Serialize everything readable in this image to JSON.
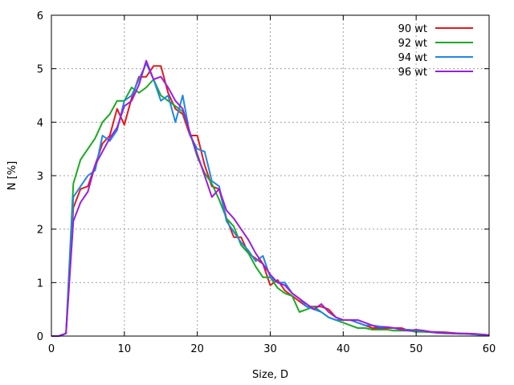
{
  "chart_data": {
    "type": "line",
    "title": "",
    "xlabel": "Size, D",
    "ylabel": "N [%]",
    "xlim": [
      0,
      60
    ],
    "ylim": [
      0,
      6
    ],
    "xticks": [
      0,
      10,
      20,
      30,
      40,
      50,
      60
    ],
    "yticks": [
      0,
      1,
      2,
      3,
      4,
      5,
      6
    ],
    "grid": true,
    "legend_position": "top-right",
    "series": [
      {
        "name": "90 wt",
        "color": "#e31a1c",
        "x": [
          0,
          1,
          2,
          3,
          4,
          5,
          6,
          7,
          8,
          9,
          10,
          11,
          12,
          13,
          14,
          15,
          16,
          17,
          18,
          19,
          20,
          21,
          22,
          23,
          24,
          25,
          26,
          27,
          28,
          29,
          30,
          31,
          32,
          33,
          34,
          35,
          36,
          37,
          38,
          39,
          40,
          41,
          42,
          43,
          44,
          45,
          46,
          47,
          48,
          49,
          50,
          51,
          52,
          53,
          54,
          55,
          56,
          57,
          58,
          59,
          60
        ],
        "y": [
          0,
          0,
          0.05,
          2.4,
          2.75,
          2.8,
          3.2,
          3.6,
          3.75,
          4.25,
          3.95,
          4.45,
          4.85,
          4.85,
          5.05,
          5.05,
          4.55,
          4.25,
          4.15,
          3.75,
          3.75,
          3.2,
          2.8,
          2.75,
          2.2,
          1.85,
          1.85,
          1.55,
          1.45,
          1.35,
          0.95,
          1.05,
          0.85,
          0.75,
          0.65,
          0.55,
          0.55,
          0.55,
          0.5,
          0.35,
          0.3,
          0.3,
          0.25,
          0.2,
          0.15,
          0.15,
          0.15,
          0.15,
          0.15,
          0.1,
          0.1,
          0.1,
          0.08,
          0.08,
          0.07,
          0.06,
          0.05,
          0.05,
          0.04,
          0.03,
          0.02
        ]
      },
      {
        "name": "92 wt",
        "color": "#1aaa22",
        "x": [
          0,
          1,
          2,
          3,
          4,
          5,
          6,
          7,
          8,
          9,
          10,
          11,
          12,
          13,
          14,
          15,
          16,
          17,
          18,
          19,
          20,
          21,
          22,
          23,
          24,
          25,
          26,
          27,
          28,
          29,
          30,
          31,
          32,
          33,
          34,
          35,
          36,
          37,
          38,
          39,
          40,
          41,
          42,
          43,
          44,
          45,
          46,
          47,
          48,
          49,
          50,
          51,
          52,
          53,
          54,
          55,
          56,
          57,
          58,
          59,
          60
        ],
        "y": [
          0,
          0,
          0.05,
          2.85,
          3.3,
          3.5,
          3.7,
          4.0,
          4.15,
          4.4,
          4.4,
          4.65,
          4.55,
          4.65,
          4.8,
          4.5,
          4.4,
          4.3,
          4.2,
          3.8,
          3.35,
          3.05,
          2.85,
          2.55,
          2.2,
          2.05,
          1.7,
          1.55,
          1.3,
          1.1,
          1.1,
          0.9,
          0.8,
          0.75,
          0.45,
          0.5,
          0.55,
          0.45,
          0.35,
          0.3,
          0.25,
          0.2,
          0.15,
          0.15,
          0.12,
          0.12,
          0.12,
          0.1,
          0.1,
          0.1,
          0.08,
          0.08,
          0.07,
          0.06,
          0.05,
          0.05,
          0.04,
          0.04,
          0.03,
          0.02,
          0.02
        ]
      },
      {
        "name": "94 wt",
        "color": "#1e88e5",
        "x": [
          0,
          1,
          2,
          3,
          4,
          5,
          6,
          7,
          8,
          9,
          10,
          11,
          12,
          13,
          14,
          15,
          16,
          17,
          18,
          19,
          20,
          21,
          22,
          23,
          24,
          25,
          26,
          27,
          28,
          29,
          30,
          31,
          32,
          33,
          34,
          35,
          36,
          37,
          38,
          39,
          40,
          41,
          42,
          43,
          44,
          45,
          46,
          47,
          48,
          49,
          50,
          51,
          52,
          53,
          54,
          55,
          56,
          57,
          58,
          59,
          60
        ],
        "y": [
          0,
          0,
          0.05,
          2.6,
          2.8,
          3.0,
          3.1,
          3.75,
          3.65,
          3.85,
          4.4,
          4.5,
          4.8,
          5.1,
          4.8,
          4.4,
          4.5,
          4.0,
          4.5,
          3.75,
          3.5,
          3.45,
          2.9,
          2.8,
          2.15,
          1.95,
          1.75,
          1.6,
          1.4,
          1.5,
          1.1,
          1.0,
          1.0,
          0.8,
          0.7,
          0.55,
          0.5,
          0.45,
          0.35,
          0.3,
          0.3,
          0.3,
          0.25,
          0.2,
          0.2,
          0.18,
          0.17,
          0.15,
          0.12,
          0.12,
          0.1,
          0.1,
          0.08,
          0.07,
          0.06,
          0.05,
          0.05,
          0.04,
          0.03,
          0.03,
          0.02
        ]
      },
      {
        "name": "96 wt",
        "color": "#9b1ee0",
        "x": [
          0,
          1,
          2,
          3,
          4,
          5,
          6,
          7,
          8,
          9,
          10,
          11,
          12,
          13,
          14,
          15,
          16,
          17,
          18,
          19,
          20,
          21,
          22,
          23,
          24,
          25,
          26,
          27,
          28,
          29,
          30,
          31,
          32,
          33,
          34,
          35,
          36,
          37,
          38,
          39,
          40,
          41,
          42,
          43,
          44,
          45,
          46,
          47,
          48,
          49,
          50,
          51,
          52,
          53,
          54,
          55,
          56,
          57,
          58,
          59,
          60
        ],
        "y": [
          0,
          0,
          0.05,
          2.15,
          2.5,
          2.7,
          3.2,
          3.45,
          3.7,
          3.9,
          4.3,
          4.4,
          4.7,
          5.15,
          4.8,
          4.85,
          4.65,
          4.4,
          4.25,
          3.8,
          3.4,
          3.0,
          2.6,
          2.75,
          2.35,
          2.2,
          2.0,
          1.8,
          1.55,
          1.35,
          1.15,
          1.0,
          0.95,
          0.8,
          0.7,
          0.6,
          0.5,
          0.6,
          0.45,
          0.35,
          0.3,
          0.3,
          0.3,
          0.25,
          0.2,
          0.15,
          0.17,
          0.15,
          0.12,
          0.1,
          0.12,
          0.1,
          0.08,
          0.06,
          0.06,
          0.05,
          0.05,
          0.04,
          0.04,
          0.03,
          0.02
        ]
      }
    ]
  }
}
